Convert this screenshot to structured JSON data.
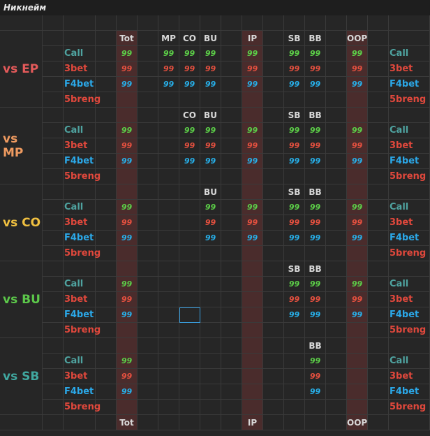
{
  "title": "Никнейм",
  "colors": {
    "call": "#4fa3a0",
    "threebet": "#e0483c",
    "f4bet": "#2ba8e8",
    "fivebreng": "#e0483c",
    "val_call": "#5ccf48",
    "val_3bet": "#e5503f",
    "val_f4bet": "#27b0ea"
  },
  "footer": [
    "Tot",
    "IP",
    "OOP"
  ],
  "groups": [
    {
      "label": "vs EP",
      "color": "#e45a5a",
      "header": [
        "Tot",
        "MP",
        "CO",
        "BU",
        "IP",
        "SB",
        "BB",
        "OOP"
      ],
      "actions": [
        "Call",
        "3bet",
        "F4bet",
        "5breng"
      ],
      "values": {
        "Call": "99",
        "3bet": "99",
        "F4bet": "99"
      },
      "filled": [
        "Tot",
        "MP",
        "CO",
        "BU",
        "IP",
        "SB",
        "BB",
        "OOP"
      ]
    },
    {
      "label": "vs MP",
      "color": "#ee9a60",
      "header": [
        "CO",
        "BU",
        "SB",
        "BB"
      ],
      "actions": [
        "Call",
        "3bet",
        "F4bet",
        "5breng"
      ],
      "values": {
        "Call": "99",
        "3bet": "99",
        "F4bet": "99"
      },
      "filled": [
        "Tot",
        "CO",
        "BU",
        "IP",
        "SB",
        "BB",
        "OOP"
      ]
    },
    {
      "label": "vs CO",
      "color": "#f0c040",
      "header": [
        "BU",
        "SB",
        "BB"
      ],
      "actions": [
        "Call",
        "3bet",
        "F4bet",
        "5breng"
      ],
      "values": {
        "Call": "99",
        "3bet": "99",
        "F4bet": "99"
      },
      "filled": [
        "Tot",
        "BU",
        "IP",
        "SB",
        "BB",
        "OOP"
      ]
    },
    {
      "label": "vs BU",
      "color": "#5cc84a",
      "header": [
        "SB",
        "BB"
      ],
      "actions": [
        "Call",
        "3bet",
        "F4bet",
        "5breng"
      ],
      "values": {
        "Call": "99",
        "3bet": "99",
        "F4bet": "99"
      },
      "filled": [
        "Tot",
        "SB",
        "BB",
        "OOP"
      ]
    },
    {
      "label": "vs SB",
      "color": "#40a8a0",
      "header": [
        "BB"
      ],
      "actions": [
        "Call",
        "3bet",
        "F4bet",
        "5breng"
      ],
      "values": {
        "Call": "99",
        "3bet": "99",
        "F4bet": "99"
      },
      "filled": [
        "Tot",
        "BB"
      ]
    }
  ]
}
